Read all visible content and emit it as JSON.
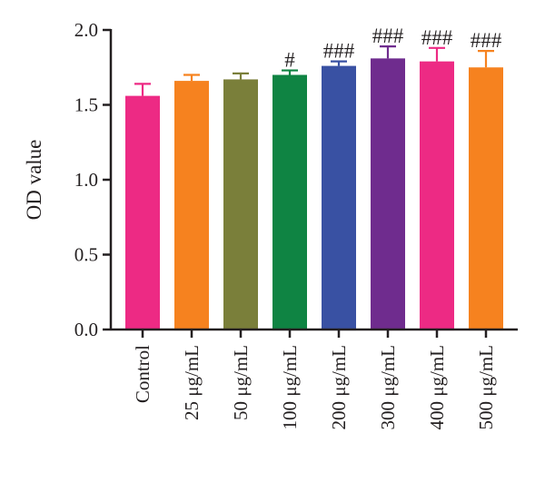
{
  "chart_data": {
    "type": "bar",
    "ylabel": "OD value",
    "xlabel": "",
    "ylim": [
      0,
      2.0
    ],
    "yticks": [
      0.0,
      0.5,
      1.0,
      1.5,
      2.0
    ],
    "ytick_labels": [
      "0.0",
      "0.5",
      "1.0",
      "1.5",
      "2.0"
    ],
    "categories": [
      "Control",
      "25 μg/mL",
      "50 μg/mL",
      "100 μg/mL",
      "200 μg/mL",
      "300 μg/mL",
      "400 μg/mL",
      "500 μg/mL"
    ],
    "values": [
      1.56,
      1.66,
      1.67,
      1.7,
      1.76,
      1.81,
      1.79,
      1.75
    ],
    "errors": [
      0.08,
      0.04,
      0.04,
      0.03,
      0.03,
      0.08,
      0.09,
      0.11
    ],
    "significance": [
      "",
      "",
      "",
      "#",
      "###",
      "###",
      "###",
      "###"
    ],
    "colors": [
      "#ed2a84",
      "#f6821f",
      "#7a7f3a",
      "#0f8443",
      "#3951a3",
      "#6f2c8e",
      "#ed2a84",
      "#f6821f"
    ]
  }
}
